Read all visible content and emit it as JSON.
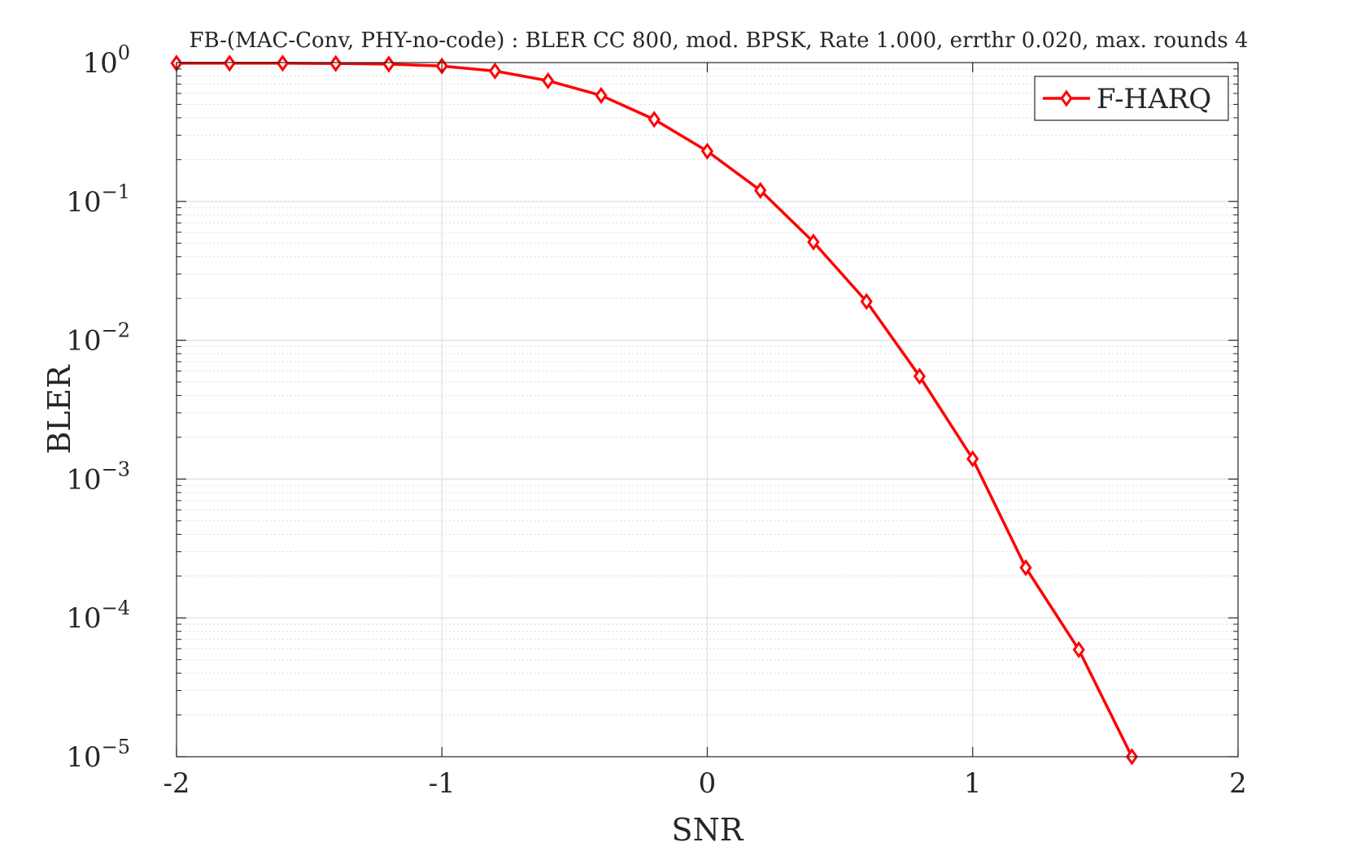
{
  "chart_data": {
    "type": "line",
    "title": "FB-(MAC-Conv, PHY-no-code) : BLER CC 800, mod. BPSK, Rate 1.000, errthr 0.020, max. rounds 4",
    "xlabel": "SNR",
    "ylabel": "BLER",
    "xlim": [
      -2,
      2
    ],
    "ylim": [
      1e-05,
      1
    ],
    "yscale": "log",
    "grid": true,
    "minor_grid": true,
    "legend_position": "top-right",
    "x_ticks": [
      {
        "value": -2,
        "label": "-2"
      },
      {
        "value": -1,
        "label": "-1"
      },
      {
        "value": 0,
        "label": "0"
      },
      {
        "value": 1,
        "label": "1"
      },
      {
        "value": 2,
        "label": "2"
      }
    ],
    "y_ticks": [
      {
        "value": 1,
        "base": "10",
        "exp": "0"
      },
      {
        "value": 0.1,
        "base": "10",
        "exp": "−1"
      },
      {
        "value": 0.01,
        "base": "10",
        "exp": "−2"
      },
      {
        "value": 0.001,
        "base": "10",
        "exp": "−3"
      },
      {
        "value": 0.0001,
        "base": "10",
        "exp": "−4"
      },
      {
        "value": 1e-05,
        "base": "10",
        "exp": "−5"
      }
    ],
    "series": [
      {
        "name": "F-HARQ",
        "color": "#ff0000",
        "marker": "diamond",
        "x": [
          -2,
          -1.8,
          -1.6,
          -1.4,
          -1.2,
          -1,
          -0.8,
          -0.6,
          -0.4,
          -0.2,
          0,
          0.2,
          0.4,
          0.6,
          0.8,
          1,
          1.2,
          1.4,
          1.6
        ],
        "y": [
          0.99,
          0.99,
          0.99,
          0.985,
          0.975,
          0.945,
          0.87,
          0.74,
          0.58,
          0.39,
          0.23,
          0.12,
          0.051,
          0.019,
          0.0055,
          0.0014,
          0.00023,
          5.9e-05,
          1e-05
        ]
      }
    ]
  }
}
